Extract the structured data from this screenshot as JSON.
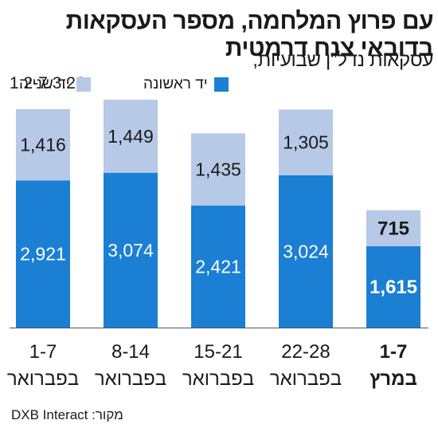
{
  "header": {
    "title_line1": "עם פרוץ המלחמה, מספר העסקאות",
    "title_line2": "בדובאי צנח דרמטית",
    "subtitle": "עסקאות נדל\"ן שבועיות,",
    "period": "1.2-7.3.26"
  },
  "source": "מקור: DXB Interact",
  "colors": {
    "first_hand": "#1b7fd4",
    "second_hand": "#b6c9e6",
    "text": "#1a1a1a"
  },
  "chart_data": {
    "type": "bar",
    "stacked": true,
    "categories": [
      {
        "line1": "1-7",
        "line2": "בפברואר",
        "highlight": false
      },
      {
        "line1": "8-14",
        "line2": "בפברואר",
        "highlight": false
      },
      {
        "line1": "15-21",
        "line2": "בפברואר",
        "highlight": false
      },
      {
        "line1": "22-28",
        "line2": "בפברואר",
        "highlight": false
      },
      {
        "line1": "1-7",
        "line2": "במרץ",
        "highlight": true
      }
    ],
    "series": [
      {
        "name": "יד ראשונה",
        "values": [
          2921,
          3074,
          2421,
          3024,
          1615
        ],
        "labels": [
          "2,921",
          "3,074",
          "2,421",
          "3,024",
          "1,615"
        ]
      },
      {
        "name": "יד שנייה",
        "values": [
          1416,
          1449,
          1435,
          1305,
          715
        ],
        "labels": [
          "1,416",
          "1,449",
          "1,435",
          "1,305",
          "715"
        ]
      }
    ],
    "legend_position": "top",
    "grid": false
  }
}
